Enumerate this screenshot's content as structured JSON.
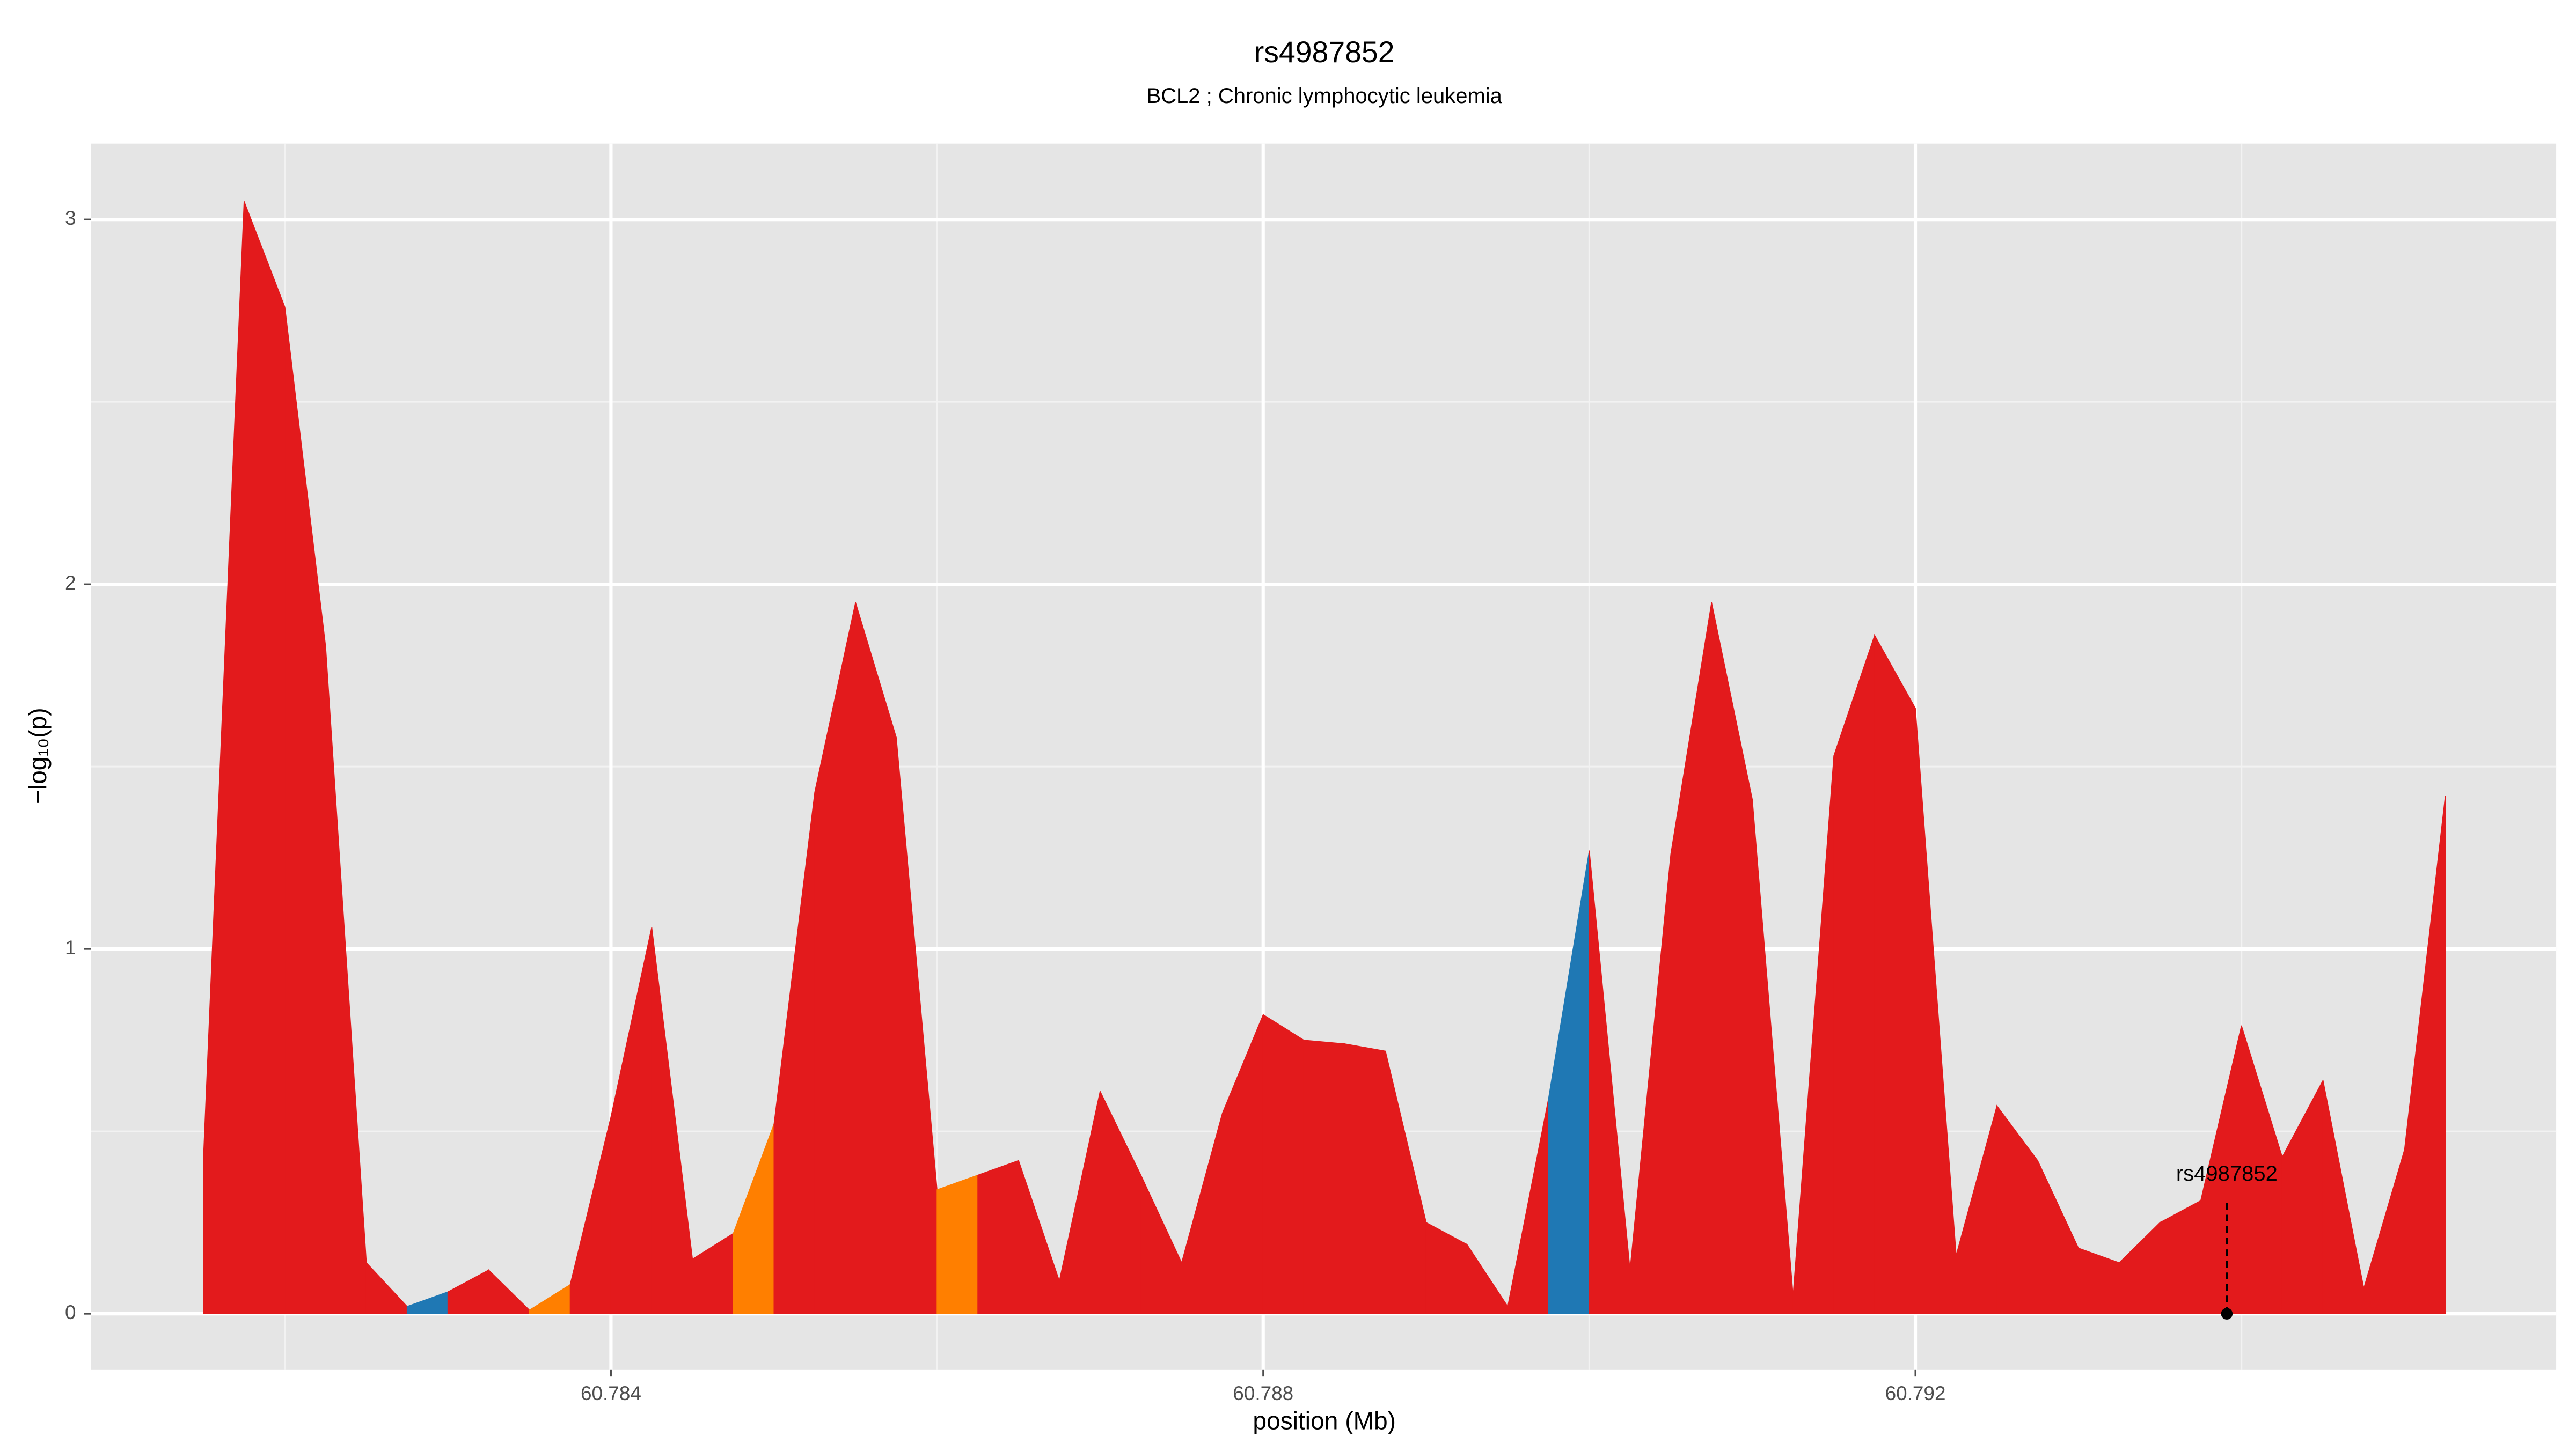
{
  "chart_data": {
    "type": "area",
    "title": "rs4987852",
    "subtitle": "BCL2 ; Chronic lymphocytic leukemia",
    "x_label": "position (Mb)",
    "y_label": "−log₁₀(p)",
    "x": [
      60.7815,
      60.78175,
      60.782,
      60.78225,
      60.7825,
      60.78275,
      60.783,
      60.78325,
      60.7835,
      60.78375,
      60.784,
      60.78425,
      60.7845,
      60.78475,
      60.785,
      60.78525,
      60.7855,
      60.78575,
      60.786,
      60.78625,
      60.7865,
      60.78675,
      60.787,
      60.78725,
      60.7875,
      60.78775,
      60.788,
      60.78825,
      60.7885,
      60.78875,
      60.789,
      60.78925,
      60.7895,
      60.78975,
      60.79,
      60.79025,
      60.7905,
      60.79075,
      60.791,
      60.79125,
      60.7915,
      60.79175,
      60.792,
      60.79225,
      60.7925,
      60.79275,
      60.793,
      60.79325,
      60.7935,
      60.79375,
      60.794,
      60.79425,
      60.7945,
      60.79475,
      60.795,
      60.79525
    ],
    "values": [
      0.42,
      3.05,
      2.76,
      1.83,
      0.14,
      0.02,
      0.06,
      0.12,
      0.01,
      0.08,
      0.54,
      1.06,
      0.15,
      0.22,
      0.52,
      1.43,
      1.95,
      1.58,
      0.34,
      0.38,
      0.42,
      0.09,
      0.61,
      0.38,
      0.14,
      0.55,
      0.82,
      0.75,
      0.74,
      0.72,
      0.25,
      0.19,
      0.02,
      0.59,
      1.27,
      0.12,
      1.26,
      1.95,
      1.41,
      0.05,
      1.53,
      1.86,
      1.66,
      0.16,
      0.57,
      0.42,
      0.18,
      0.14,
      0.25,
      0.31,
      0.79,
      0.43,
      0.64,
      0.07,
      0.45,
      1.42
    ],
    "segment_colors": [
      "#e31a1c",
      "#e31a1c",
      "#e31a1c",
      "#e31a1c",
      "#e31a1c",
      "#1f78b4",
      "#e31a1c",
      "#e31a1c",
      "#ff7f00",
      "#e31a1c",
      "#e31a1c",
      "#e31a1c",
      "#e31a1c",
      "#ff7f00",
      "#e31a1c",
      "#e31a1c",
      "#e31a1c",
      "#e31a1c",
      "#ff7f00",
      "#e31a1c",
      "#e31a1c",
      "#e31a1c",
      "#e31a1c",
      "#e31a1c",
      "#e31a1c",
      "#e31a1c",
      "#e31a1c",
      "#e31a1c",
      "#e31a1c",
      "#e31a1c",
      "#e31a1c",
      "#e31a1c",
      "#e31a1c",
      "#1f78b4",
      "#e31a1c",
      "#e31a1c",
      "#e31a1c",
      "#e31a1c",
      "#e31a1c",
      "#e31a1c",
      "#e31a1c",
      "#e31a1c",
      "#e31a1c",
      "#e31a1c",
      "#e31a1c",
      "#e31a1c",
      "#e31a1c",
      "#e31a1c",
      "#e31a1c",
      "#e31a1c",
      "#e31a1c",
      "#e31a1c",
      "#e31a1c",
      "#e31a1c",
      "#e31a1c"
    ],
    "xlim": [
      60.78081,
      60.79593
    ],
    "ylim": [
      -0.154,
      3.208
    ],
    "xticks": [
      60.784,
      60.788,
      60.792
    ],
    "xminor": [
      60.782,
      60.786,
      60.79,
      60.794
    ],
    "yticks": [
      0,
      1,
      2,
      3
    ],
    "yminor": [
      0.5,
      1.5,
      2.5
    ],
    "grid": true,
    "annotation": {
      "text": "rs4987852",
      "x": 60.79391,
      "y": 0
    }
  }
}
